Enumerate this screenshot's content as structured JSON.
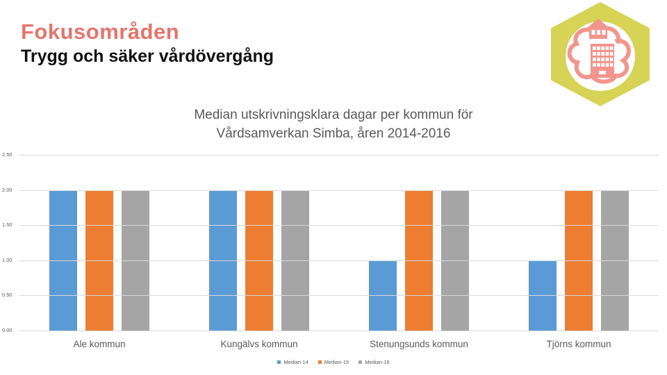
{
  "slide": {
    "title": "Fokusområden",
    "subtitle": "Trygg och säker vårdövergång"
  },
  "logo": {
    "hex_color": "#D6D355",
    "art_color": "#F2958C",
    "background_color": "#FFFFFF"
  },
  "colors": {
    "title_accent": "#E4756B",
    "chart_text": "#595959",
    "gridline": "#D9D9D9"
  },
  "chart_data": {
    "type": "bar",
    "title_line1": "Median utskrivningsklara dagar per kommun för",
    "title_line2": "Vårdsamverkan Simba, åren 2014-2016",
    "categories": [
      "Ale kommun",
      "Kungälvs kommun",
      "Stenungsunds kommun",
      "Tjörns kommun"
    ],
    "series": [
      {
        "name": "Median-14",
        "color": "#5B9BD5",
        "values": [
          2,
          2,
          1,
          1
        ]
      },
      {
        "name": "Median-15",
        "color": "#ED7D31",
        "values": [
          2,
          2,
          2,
          2
        ]
      },
      {
        "name": "Median-16",
        "color": "#A5A5A5",
        "values": [
          2,
          2,
          2,
          2
        ]
      }
    ],
    "xlabel": "",
    "ylabel": "",
    "ylim": [
      0,
      2.5
    ],
    "ytick_step": 0.5,
    "ytick_labels": [
      "0.00",
      "0.50",
      "1.00",
      "1.50",
      "2.00",
      "2.50"
    ],
    "grid": true,
    "legend_position": "bottom"
  }
}
